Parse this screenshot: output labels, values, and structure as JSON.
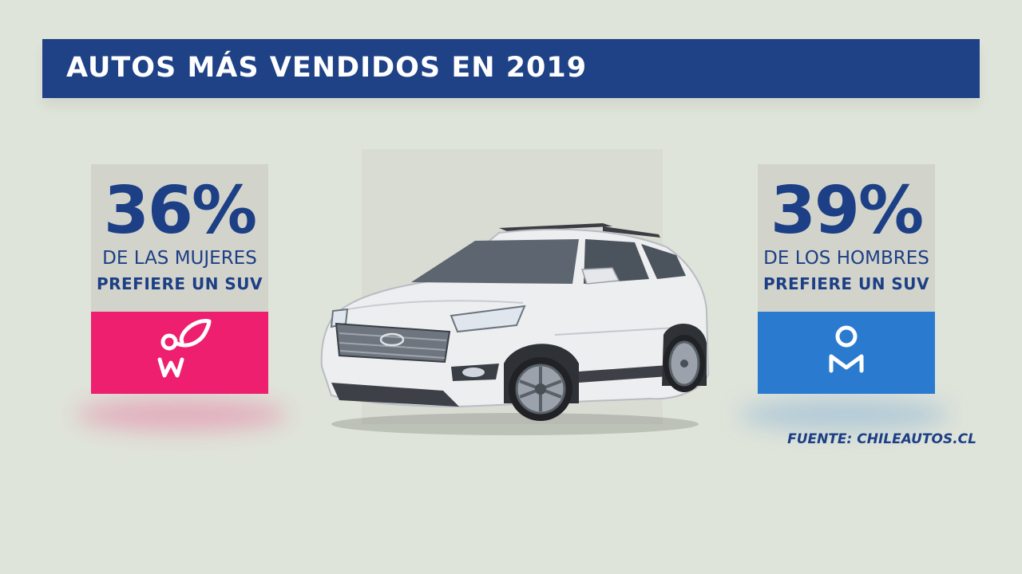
{
  "banner": {
    "title": "AUTOS MÁS VENDIDOS EN 2019"
  },
  "women": {
    "percent": "36%",
    "line1": "DE LAS MUJERES",
    "line2": "PREFIERE UN SUV",
    "icon": "female-symbol-icon",
    "color": "#ee1f6f"
  },
  "men": {
    "percent": "39%",
    "line1": "DE LOS HOMBRES",
    "line2": "PREFIERE UN SUV",
    "icon": "male-symbol-icon",
    "color": "#2a7bd0"
  },
  "car": {
    "icon": "suv-car-image",
    "badge": "hyundai-logo-icon"
  },
  "source": "FUENTE: CHILEAUTOS.CL",
  "colors": {
    "navy": "#1f4287",
    "background": "#dfe4da",
    "panel": "#d2d3cb"
  }
}
